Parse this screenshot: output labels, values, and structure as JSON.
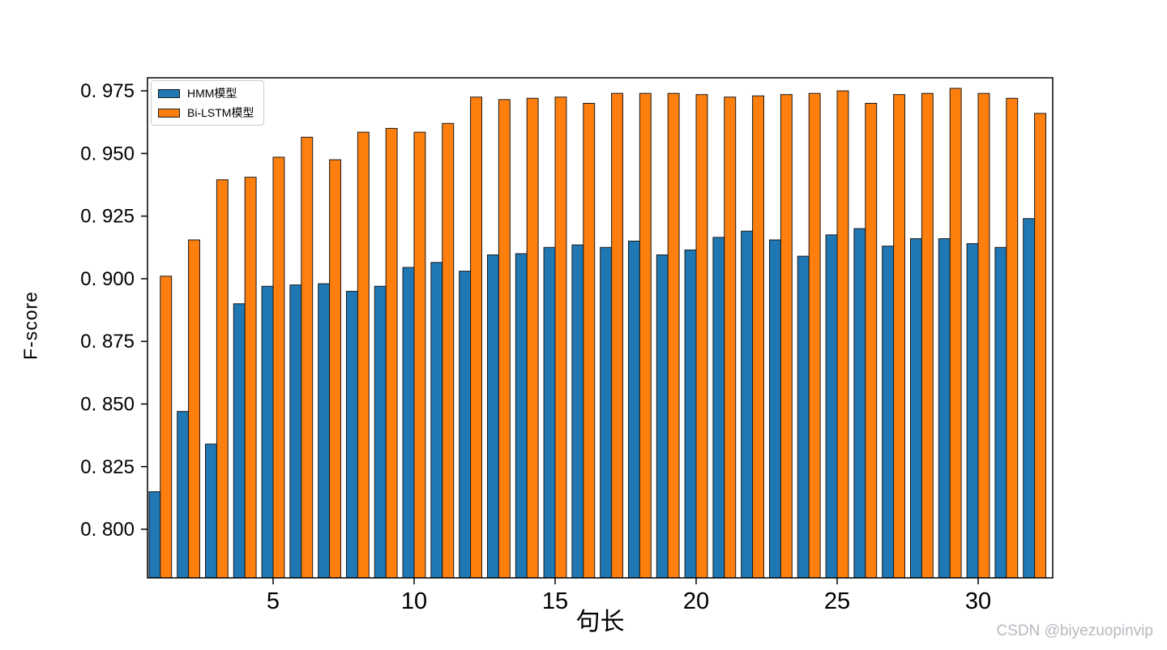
{
  "watermark": "CSDN @biyezuopinvip",
  "chart_data": {
    "type": "bar",
    "title": "",
    "xlabel": "句长",
    "ylabel": "F-score",
    "grid": false,
    "legend_position": "upper left",
    "categories": [
      1,
      2,
      3,
      4,
      5,
      6,
      7,
      8,
      9,
      10,
      11,
      12,
      13,
      14,
      15,
      16,
      17,
      18,
      19,
      20,
      21,
      22,
      23,
      24,
      25,
      26,
      27,
      28,
      29,
      30,
      31,
      32
    ],
    "series": [
      {
        "name": "HMM模型",
        "color": "#1f77b4",
        "edge_color": "#1a1a1a",
        "values": [
          0.815,
          0.847,
          0.834,
          0.89,
          0.897,
          0.8975,
          0.898,
          0.895,
          0.897,
          0.9045,
          0.9065,
          0.903,
          0.9095,
          0.91,
          0.9125,
          0.9135,
          0.9125,
          0.915,
          0.9095,
          0.9115,
          0.9165,
          0.919,
          0.9155,
          0.909,
          0.9175,
          0.92,
          0.913,
          0.916,
          0.916,
          0.914,
          0.9125,
          0.924
        ]
      },
      {
        "name": "Bi-LSTM模型",
        "color": "#ff7f0e",
        "edge_color": "#1a1a1a",
        "values": [
          0.901,
          0.9155,
          0.9395,
          0.9405,
          0.9485,
          0.9565,
          0.9475,
          0.9585,
          0.96,
          0.9585,
          0.962,
          0.9725,
          0.9715,
          0.972,
          0.9725,
          0.97,
          0.974,
          0.974,
          0.974,
          0.9735,
          0.9725,
          0.973,
          0.9735,
          0.974,
          0.975,
          0.97,
          0.9735,
          0.974,
          0.976,
          0.974,
          0.972,
          0.966
        ]
      }
    ],
    "ylim": [
      0.7806,
      0.9802
    ],
    "yticks": [
      0.8,
      0.825,
      0.85,
      0.875,
      0.9,
      0.925,
      0.95,
      0.975
    ],
    "ytick_labels": [
      "0. 800",
      "0. 825",
      "0. 850",
      "0. 875",
      "0. 900",
      "0. 925",
      "0. 950",
      "0. 975"
    ],
    "xticks": [
      5,
      10,
      15,
      20,
      25,
      30
    ],
    "xtick_labels": [
      "5",
      "10",
      "15",
      "20",
      "25",
      "30"
    ]
  }
}
